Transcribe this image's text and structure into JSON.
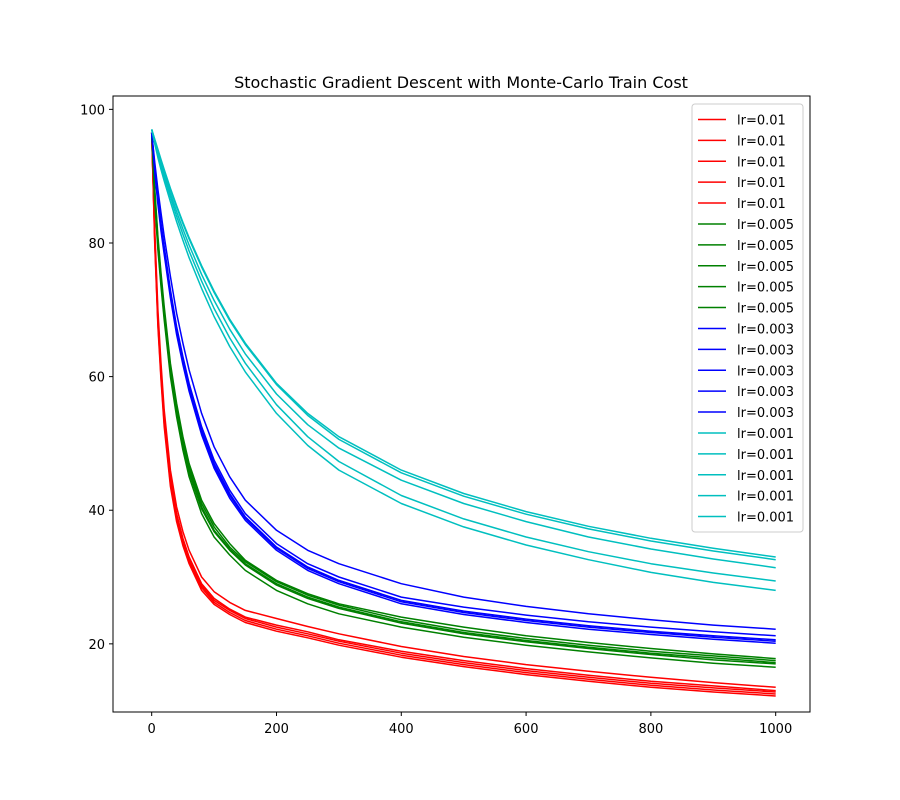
{
  "chart_data": {
    "type": "line",
    "title": "Stochastic Gradient Descent with Monte-Carlo Train Cost",
    "xlabel": "",
    "ylabel": "",
    "xlim": [
      -62,
      1055
    ],
    "ylim": [
      9.8,
      102
    ],
    "x_ticks": [
      0,
      200,
      400,
      600,
      800,
      1000
    ],
    "y_ticks": [
      20,
      40,
      60,
      80,
      100
    ],
    "grid": false,
    "legend_position": "top-right",
    "x_samples": [
      0,
      5,
      10,
      15,
      20,
      30,
      40,
      50,
      60,
      80,
      100,
      125,
      150,
      200,
      250,
      300,
      400,
      500,
      600,
      700,
      800,
      900,
      1000
    ],
    "series": [
      {
        "name": "lr=0.01",
        "color": "#ff0000",
        "values": [
          96.5,
          82.0,
          70.0,
          62.0,
          55.0,
          46.0,
          40.5,
          36.8,
          34.0,
          30.0,
          27.8,
          26.2,
          25.0,
          23.8,
          22.6,
          21.5,
          19.6,
          18.1,
          16.9,
          15.9,
          15.0,
          14.2,
          13.5
        ]
      },
      {
        "name": "lr=0.01",
        "color": "#ff0000",
        "values": [
          96.5,
          81.0,
          69.0,
          61.0,
          54.0,
          45.0,
          39.5,
          35.8,
          33.0,
          29.0,
          26.8,
          25.2,
          24.0,
          22.8,
          21.8,
          20.6,
          18.9,
          17.5,
          16.3,
          15.3,
          14.4,
          13.7,
          13.0
        ]
      },
      {
        "name": "lr=0.01",
        "color": "#ff0000",
        "values": [
          96.5,
          80.5,
          68.5,
          60.5,
          53.5,
          44.5,
          39.0,
          35.4,
          32.7,
          28.7,
          26.5,
          25.0,
          23.8,
          22.5,
          21.5,
          20.4,
          18.6,
          17.2,
          16.0,
          15.0,
          14.1,
          13.4,
          12.8
        ]
      },
      {
        "name": "lr=0.01",
        "color": "#ff0000",
        "values": [
          96.5,
          80.0,
          68.0,
          60.0,
          53.0,
          44.0,
          38.7,
          35.1,
          32.4,
          28.4,
          26.2,
          24.7,
          23.5,
          22.2,
          21.2,
          20.1,
          18.3,
          16.9,
          15.7,
          14.7,
          13.8,
          13.1,
          12.5
        ]
      },
      {
        "name": "lr=0.01",
        "color": "#ff0000",
        "values": [
          96.5,
          79.5,
          67.5,
          59.5,
          52.5,
          43.6,
          38.3,
          34.7,
          32.0,
          28.0,
          25.9,
          24.4,
          23.2,
          21.9,
          20.9,
          19.8,
          18.0,
          16.6,
          15.4,
          14.4,
          13.5,
          12.8,
          12.2
        ]
      },
      {
        "name": "lr=0.005",
        "color": "#008000",
        "values": [
          96.5,
          88.0,
          81.0,
          75.5,
          70.5,
          62.0,
          56.0,
          51.0,
          47.0,
          41.5,
          38.0,
          35.0,
          32.5,
          29.5,
          27.5,
          26.0,
          24.0,
          22.5,
          21.2,
          20.2,
          19.3,
          18.5,
          17.8
        ]
      },
      {
        "name": "lr=0.005",
        "color": "#008000",
        "values": [
          96.5,
          87.5,
          80.5,
          75.0,
          70.0,
          61.5,
          55.5,
          50.5,
          46.5,
          41.0,
          37.5,
          34.5,
          32.3,
          29.3,
          27.3,
          25.8,
          23.6,
          22.0,
          20.8,
          19.8,
          18.9,
          18.2,
          17.5
        ]
      },
      {
        "name": "lr=0.005",
        "color": "#008000",
        "values": [
          96.5,
          87.0,
          80.0,
          74.5,
          69.5,
          61.0,
          55.0,
          50.0,
          46.0,
          40.5,
          37.0,
          34.2,
          32.0,
          29.0,
          27.0,
          25.5,
          23.3,
          21.7,
          20.5,
          19.5,
          18.6,
          17.9,
          17.2
        ]
      },
      {
        "name": "lr=0.005",
        "color": "#008000",
        "values": [
          96.5,
          86.5,
          79.5,
          74.0,
          69.0,
          60.5,
          54.5,
          49.6,
          45.6,
          40.2,
          36.8,
          34.0,
          31.8,
          28.8,
          26.8,
          25.3,
          23.1,
          21.5,
          20.3,
          19.3,
          18.4,
          17.6,
          17.0
        ]
      },
      {
        "name": "lr=0.005",
        "color": "#008000",
        "values": [
          96.5,
          86.0,
          79.0,
          73.5,
          68.5,
          60.0,
          54.0,
          49.0,
          45.0,
          39.5,
          36.0,
          33.3,
          31.0,
          28.0,
          26.0,
          24.5,
          22.5,
          21.0,
          19.8,
          18.8,
          17.9,
          17.1,
          16.5
        ]
      },
      {
        "name": "lr=0.003",
        "color": "#0000ff",
        "values": [
          96.5,
          91.5,
          87.0,
          83.0,
          79.5,
          73.0,
          67.5,
          63.0,
          59.0,
          52.5,
          47.5,
          43.0,
          39.5,
          35.0,
          32.0,
          30.0,
          27.0,
          25.5,
          24.3,
          23.3,
          22.5,
          21.8,
          21.2
        ]
      },
      {
        "name": "lr=0.003",
        "color": "#0000ff",
        "values": [
          96.5,
          91.0,
          86.5,
          82.5,
          79.0,
          72.5,
          67.0,
          62.5,
          58.5,
          52.0,
          47.0,
          42.5,
          39.0,
          34.5,
          31.5,
          29.5,
          26.5,
          24.9,
          23.7,
          22.7,
          21.9,
          21.2,
          20.6
        ]
      },
      {
        "name": "lr=0.003",
        "color": "#0000ff",
        "values": [
          96.5,
          90.8,
          86.2,
          82.2,
          78.7,
          72.2,
          66.7,
          62.2,
          58.2,
          51.7,
          46.7,
          42.2,
          38.8,
          34.3,
          31.3,
          29.3,
          26.3,
          24.7,
          23.5,
          22.5,
          21.7,
          21.0,
          20.4
        ]
      },
      {
        "name": "lr=0.003",
        "color": "#0000ff",
        "values": [
          96.5,
          90.5,
          85.8,
          81.8,
          78.3,
          71.8,
          66.3,
          61.8,
          57.8,
          51.3,
          46.3,
          41.8,
          38.5,
          34.0,
          31.0,
          29.0,
          26.0,
          24.4,
          23.2,
          22.2,
          21.4,
          20.7,
          20.1
        ]
      },
      {
        "name": "lr=0.003",
        "color": "#0000ff",
        "values": [
          96.5,
          92.0,
          88.0,
          84.5,
          81.0,
          75.0,
          69.5,
          65.0,
          61.0,
          54.5,
          49.5,
          45.0,
          41.5,
          37.0,
          34.0,
          32.0,
          29.0,
          27.0,
          25.6,
          24.5,
          23.6,
          22.8,
          22.2
        ]
      },
      {
        "name": "lr=0.001",
        "color": "#00bfbf",
        "values": [
          97.0,
          95.5,
          94.0,
          92.5,
          91.0,
          88.2,
          85.6,
          83.1,
          80.8,
          76.6,
          72.8,
          68.6,
          65.0,
          59.0,
          54.5,
          51.0,
          46.0,
          42.5,
          39.8,
          37.6,
          35.8,
          34.3,
          33.0
        ]
      },
      {
        "name": "lr=0.001",
        "color": "#00bfbf",
        "values": [
          97.0,
          95.4,
          93.8,
          92.3,
          90.8,
          88.0,
          85.4,
          82.9,
          80.6,
          76.4,
          72.6,
          68.4,
          64.8,
          58.8,
          54.2,
          50.6,
          45.6,
          42.1,
          39.4,
          37.2,
          35.4,
          33.9,
          32.6
        ]
      },
      {
        "name": "lr=0.001",
        "color": "#00bfbf",
        "values": [
          97.0,
          95.2,
          93.5,
          91.9,
          90.3,
          87.4,
          84.7,
          82.1,
          79.7,
          75.3,
          71.4,
          67.1,
          63.4,
          57.4,
          52.8,
          49.3,
          44.5,
          41.0,
          38.3,
          36.0,
          34.2,
          32.7,
          31.4
        ]
      },
      {
        "name": "lr=0.001",
        "color": "#00bfbf",
        "values": [
          97.0,
          95.0,
          93.2,
          91.5,
          89.9,
          86.9,
          84.0,
          81.3,
          78.8,
          74.3,
          70.2,
          65.8,
          62.0,
          55.8,
          51.0,
          47.3,
          42.2,
          38.7,
          36.0,
          33.8,
          32.0,
          30.6,
          29.4
        ]
      },
      {
        "name": "lr=0.001",
        "color": "#00bfbf",
        "values": [
          97.0,
          94.8,
          92.8,
          91.0,
          89.3,
          86.2,
          83.2,
          80.4,
          77.8,
          73.2,
          69.0,
          64.5,
          60.7,
          54.5,
          49.7,
          46.0,
          41.0,
          37.5,
          34.8,
          32.6,
          30.7,
          29.2,
          28.0
        ]
      }
    ]
  }
}
